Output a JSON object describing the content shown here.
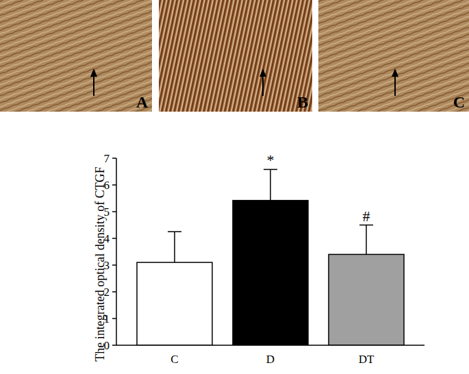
{
  "panels": [
    "A",
    "B",
    "C"
  ],
  "chart_data": {
    "type": "bar",
    "y_label": "The integrated optical density of CTGF",
    "categories": [
      "C",
      "D",
      "DT"
    ],
    "values": [
      3.1,
      5.42,
      3.4
    ],
    "errors": [
      1.15,
      1.16,
      1.1
    ],
    "significance": [
      null,
      "*",
      "#"
    ],
    "colors": [
      "#ffffff",
      "#000000",
      "#a0a0a0"
    ],
    "ylim": [
      0,
      7
    ],
    "yticks": [
      0,
      1,
      2,
      3,
      4,
      5,
      6,
      7
    ],
    "grid": false
  }
}
